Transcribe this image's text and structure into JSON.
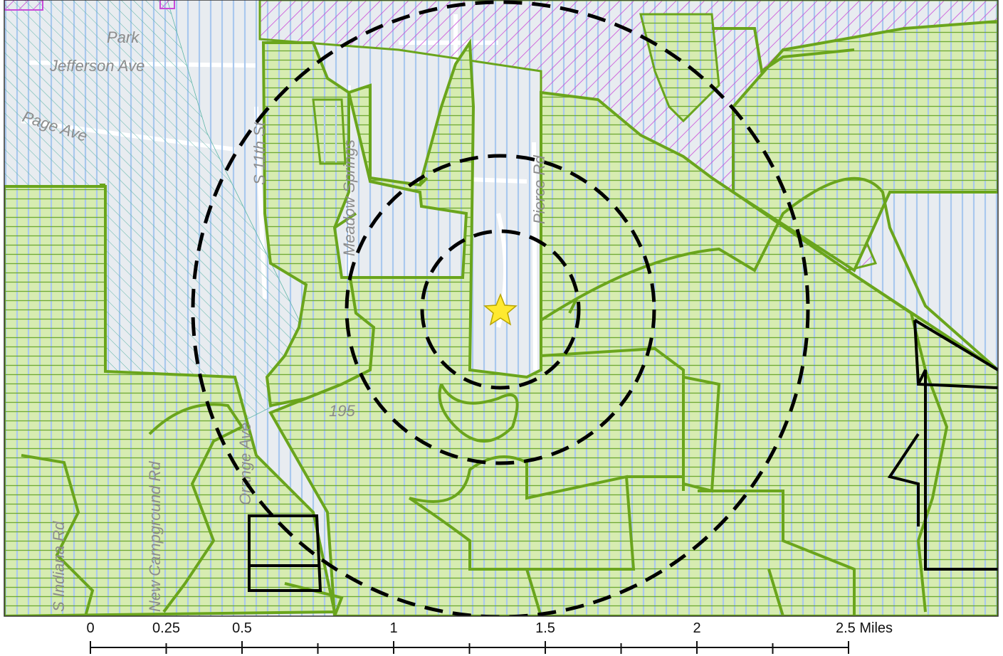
{
  "map": {
    "title_fragment": "",
    "colors": {
      "background": "#e8ecf0",
      "road": "#ffffff",
      "vertical_hatch": "#a9c8ee",
      "green_fill": "#d7ecb1",
      "green_grid": "#6ea832",
      "green_outline": "#6aa51c",
      "magenta_hatch": "#c94ad9",
      "teal_hatch": "#5fb5a8",
      "star": "#ffe930",
      "buffer_ring": "#000000"
    },
    "street_labels": {
      "park": "Park",
      "jefferson": "Jefferson Ave",
      "page": "Page Ave",
      "st": "S 11th St",
      "meadow": "Meadow Springs",
      "pierce": "Pierce Rd",
      "route": "195",
      "orange": "Orange Ave",
      "campground": "New Campground Rd",
      "indiana": "S Indiana Rd"
    },
    "site_marker": {
      "icon": "star-icon"
    },
    "buffer_rings": [
      "inner-ring",
      "middle-ring",
      "outer-ring"
    ],
    "scale_bar": {
      "labels": [
        "0",
        "0.25",
        "0.5",
        "1",
        "1.5",
        "2",
        "2.5 Miles"
      ],
      "values": [
        0,
        0.25,
        0.5,
        1,
        1.5,
        2,
        2.5
      ],
      "unit": "Miles"
    }
  }
}
